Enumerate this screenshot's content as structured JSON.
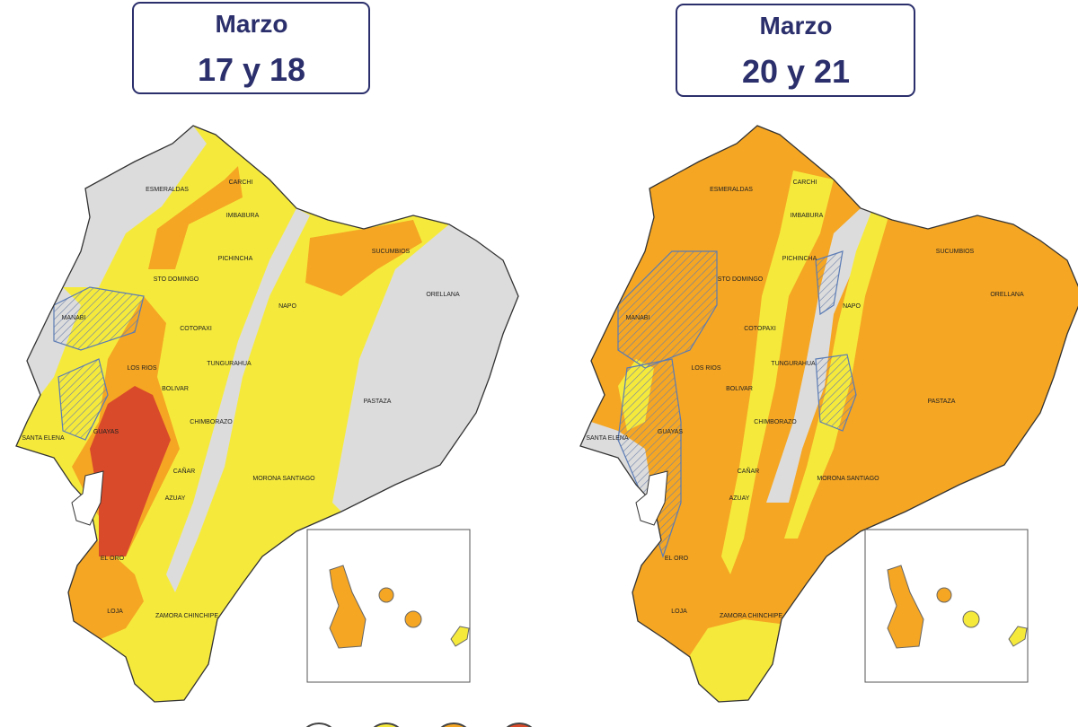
{
  "maps": [
    {
      "header": {
        "month": "Marzo",
        "days": "17 y 18"
      },
      "provinces": [
        "ESMERALDAS",
        "CARCHI",
        "IMBABURA",
        "SUCUMBIOS",
        "PICHINCHA",
        "STO DOMINGO",
        "MANABI",
        "NAPO",
        "ORELLANA",
        "COTOPAXI",
        "LOS RIOS",
        "TUNGURAHUA",
        "BOLIVAR",
        "CHIMBORAZO",
        "PASTAZA",
        "SANTA ELENA",
        "GUAYAS",
        "CAÑAR",
        "MORONA SANTIAGO",
        "AZUAY",
        "EL ORO",
        "LOJA",
        "ZAMORA CHINCHIPE"
      ]
    },
    {
      "header": {
        "month": "Marzo",
        "days": "20 y 21"
      },
      "provinces": [
        "ESMERALDAS",
        "CARCHI",
        "IMBABURA",
        "SUCUMBIOS",
        "PICHINCHA",
        "STO DOMINGO",
        "MANABI",
        "NAPO",
        "ORELLANA",
        "COTOPAXI",
        "LOS RIOS",
        "TUNGURAHUA",
        "BOLIVAR",
        "CHIMBORAZO",
        "PASTAZA",
        "SANTA ELENA",
        "GUAYAS",
        "CAÑAR",
        "MORONA SANTIAGO",
        "AZUAY",
        "EL ORO",
        "LOJA",
        "ZAMORA CHINCHIPE"
      ]
    }
  ]
}
